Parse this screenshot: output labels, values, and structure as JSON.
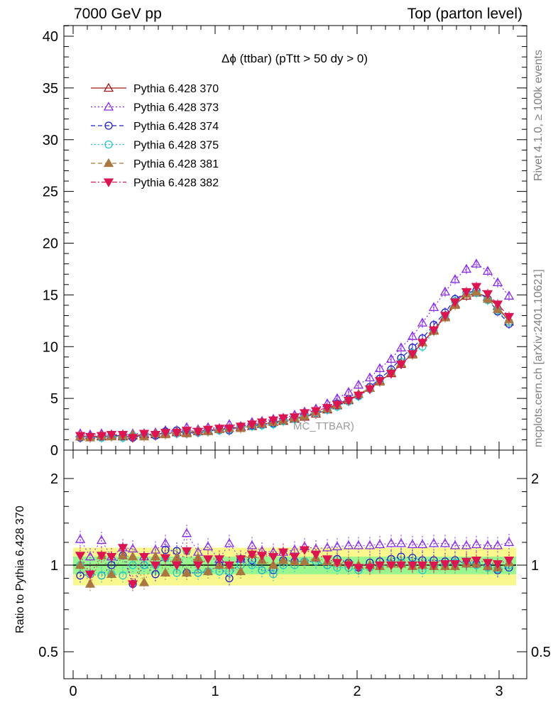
{
  "header": {
    "left": "7000 GeV pp",
    "right": "Top (parton level)"
  },
  "side_labels": {
    "rivet": "Rivet 4.1.0, ≥ 100k events",
    "mcplots": "mcplots.cern.ch [arXiv:2401.10621]"
  },
  "ratio_ylabel": "Ratio to Pythia 6.428 370",
  "watermark": "MC_TTBAR)",
  "chart_data": [
    {
      "type": "line",
      "title": "Δϕ (ttbar) (pTtt > 50 dy > 0)",
      "xlabel": "",
      "ylabel": "",
      "xlim": [
        -0.05,
        3.2
      ],
      "ylim": [
        0,
        41
      ],
      "xticks": [
        0,
        1,
        2,
        3
      ],
      "yticks": [
        0,
        5,
        10,
        15,
        20,
        25,
        30,
        35,
        40
      ],
      "legend_position": "top-left",
      "x": [
        0.05,
        0.12,
        0.2,
        0.27,
        0.35,
        0.42,
        0.5,
        0.58,
        0.65,
        0.73,
        0.8,
        0.88,
        0.95,
        1.03,
        1.1,
        1.18,
        1.26,
        1.33,
        1.41,
        1.48,
        1.56,
        1.63,
        1.71,
        1.79,
        1.86,
        1.94,
        2.01,
        2.09,
        2.16,
        2.24,
        2.31,
        2.39,
        2.46,
        2.54,
        2.62,
        2.69,
        2.77,
        2.84,
        2.92,
        2.99,
        3.07
      ],
      "series": [
        {
          "name": "Pythia 6.428 370",
          "color": "#a01818",
          "marker": "triangle-up-open",
          "line": "solid",
          "values": [
            1.3,
            1.4,
            1.3,
            1.4,
            1.3,
            1.4,
            1.5,
            1.5,
            1.6,
            1.7,
            1.7,
            1.8,
            1.9,
            2.0,
            2.1,
            2.2,
            2.3,
            2.5,
            2.7,
            2.8,
            3.0,
            3.2,
            3.5,
            3.9,
            4.3,
            4.8,
            5.4,
            6.0,
            6.7,
            7.4,
            8.3,
            9.3,
            10.4,
            11.6,
            12.9,
            14.1,
            14.9,
            15.2,
            14.8,
            13.9,
            12.4
          ]
        },
        {
          "name": "Pythia 6.428 373",
          "color": "#8a2be2",
          "marker": "triangle-up-open",
          "line": "dotted",
          "values": [
            1.6,
            1.5,
            1.6,
            1.5,
            1.5,
            1.6,
            1.6,
            1.7,
            1.9,
            1.8,
            2.2,
            2.0,
            2.2,
            2.1,
            2.5,
            2.3,
            2.7,
            2.8,
            3.0,
            3.1,
            3.4,
            3.7,
            4.0,
            4.5,
            5.0,
            5.6,
            6.3,
            7.0,
            7.9,
            8.8,
            9.9,
            11.0,
            12.3,
            13.8,
            15.3,
            16.5,
            17.5,
            18.0,
            17.3,
            16.2,
            14.9
          ]
        },
        {
          "name": "Pythia 6.428 374",
          "color": "#1e1ecd",
          "marker": "circle-open",
          "line": "dashed",
          "values": [
            1.2,
            1.3,
            1.2,
            1.4,
            1.4,
            1.2,
            1.5,
            1.4,
            1.8,
            1.9,
            1.6,
            1.7,
            1.8,
            2.0,
            1.9,
            2.3,
            2.4,
            2.4,
            2.6,
            2.9,
            3.1,
            3.3,
            3.6,
            3.9,
            4.5,
            4.9,
            5.3,
            6.1,
            6.9,
            7.8,
            8.9,
            9.9,
            10.8,
            12.1,
            13.3,
            14.6,
            15.2,
            15.4,
            14.6,
            13.4,
            12.2
          ]
        },
        {
          "name": "Pythia 6.428 375",
          "color": "#20c8c8",
          "marker": "circle-open",
          "line": "dotted",
          "values": [
            1.3,
            1.3,
            1.2,
            1.3,
            1.2,
            1.4,
            1.5,
            1.5,
            1.7,
            1.6,
            1.9,
            1.7,
            1.8,
            1.9,
            2.0,
            2.2,
            2.3,
            2.4,
            2.5,
            2.8,
            3.0,
            3.3,
            3.6,
            3.9,
            4.2,
            4.7,
            5.2,
            5.9,
            6.6,
            7.5,
            8.5,
            9.4,
            10.0,
            11.5,
            13.0,
            14.4,
            15.1,
            15.2,
            14.5,
            13.5,
            12.4
          ]
        },
        {
          "name": "Pythia 6.428 381",
          "color": "#a87840",
          "marker": "triangle-up-filled",
          "line": "dashed",
          "values": [
            1.3,
            1.2,
            1.4,
            1.3,
            1.4,
            1.5,
            1.3,
            1.6,
            1.5,
            1.8,
            1.6,
            1.9,
            1.8,
            2.0,
            2.1,
            2.1,
            2.5,
            2.6,
            2.7,
            2.9,
            3.1,
            3.3,
            3.7,
            4.0,
            4.4,
            4.9,
            5.4,
            6.0,
            6.6,
            7.5,
            8.4,
            9.2,
            10.4,
            11.5,
            12.8,
            14.0,
            15.1,
            15.3,
            14.6,
            13.6,
            12.6
          ]
        },
        {
          "name": "Pythia 6.428 382",
          "color": "#dc1450",
          "marker": "triangle-down-filled",
          "line": "dashdot",
          "values": [
            1.4,
            1.3,
            1.4,
            1.5,
            1.5,
            1.2,
            1.6,
            1.5,
            1.7,
            1.7,
            1.9,
            1.8,
            2.0,
            2.1,
            2.1,
            2.3,
            2.5,
            2.7,
            2.9,
            3.1,
            3.2,
            3.6,
            3.8,
            4.1,
            4.4,
            4.8,
            5.3,
            5.9,
            6.7,
            7.4,
            8.3,
            9.3,
            10.4,
            11.6,
            13.0,
            14.3,
            15.3,
            15.8,
            15.1,
            14.1,
            12.9
          ]
        }
      ]
    },
    {
      "type": "line",
      "title": "",
      "xlabel": "",
      "ylabel": "Ratio to Pythia 6.428 370",
      "xlim": [
        -0.05,
        3.2
      ],
      "ylim": [
        0.43,
        2.25
      ],
      "yscale": "log",
      "xticks": [
        0,
        1,
        2,
        3
      ],
      "yticks": [
        0.5,
        1,
        2
      ],
      "bands": {
        "inner": [
          0.93,
          1.07
        ],
        "outer": [
          0.85,
          1.15
        ]
      },
      "x": [
        0.05,
        0.12,
        0.2,
        0.27,
        0.35,
        0.42,
        0.5,
        0.58,
        0.65,
        0.73,
        0.8,
        0.88,
        0.95,
        1.03,
        1.1,
        1.18,
        1.26,
        1.33,
        1.41,
        1.48,
        1.56,
        1.63,
        1.71,
        1.79,
        1.86,
        1.94,
        2.01,
        2.09,
        2.16,
        2.24,
        2.31,
        2.39,
        2.46,
        2.54,
        2.62,
        2.69,
        2.77,
        2.84,
        2.92,
        2.99,
        3.07
      ],
      "series": [
        {
          "name": "Pythia 6.428 373",
          "color": "#8a2be2",
          "marker": "triangle-up-open",
          "values": [
            1.23,
            1.07,
            1.22,
            1.07,
            1.15,
            1.14,
            1.07,
            1.13,
            1.19,
            1.06,
            1.29,
            1.11,
            1.16,
            1.05,
            1.19,
            1.05,
            1.17,
            1.12,
            1.11,
            1.11,
            1.13,
            1.16,
            1.14,
            1.15,
            1.16,
            1.17,
            1.17,
            1.17,
            1.18,
            1.19,
            1.19,
            1.18,
            1.18,
            1.19,
            1.19,
            1.17,
            1.17,
            1.18,
            1.17,
            1.17,
            1.2
          ]
        },
        {
          "name": "Pythia 6.428 374",
          "color": "#1e1ecd",
          "marker": "circle-open",
          "values": [
            0.92,
            0.93,
            0.92,
            1.0,
            1.08,
            0.86,
            1.0,
            0.93,
            1.13,
            1.12,
            0.94,
            0.94,
            0.95,
            1.0,
            0.9,
            1.05,
            1.04,
            0.96,
            0.96,
            1.04,
            1.03,
            1.03,
            1.03,
            1.0,
            1.05,
            1.02,
            0.98,
            1.02,
            1.03,
            1.05,
            1.07,
            1.06,
            1.04,
            1.04,
            1.03,
            1.04,
            1.02,
            1.01,
            0.99,
            0.96,
            0.98
          ]
        },
        {
          "name": "Pythia 6.428 375",
          "color": "#20c8c8",
          "marker": "circle-open",
          "values": [
            1.0,
            0.93,
            0.92,
            0.93,
            0.92,
            1.0,
            1.0,
            1.0,
            1.06,
            0.94,
            1.12,
            0.94,
            0.95,
            0.95,
            0.95,
            1.0,
            1.0,
            0.96,
            0.93,
            1.0,
            1.0,
            1.03,
            1.03,
            1.0,
            0.98,
            0.98,
            0.96,
            0.98,
            0.99,
            1.01,
            1.02,
            1.01,
            0.96,
            0.99,
            1.01,
            1.02,
            1.01,
            1.0,
            0.98,
            0.97,
            1.0
          ]
        },
        {
          "name": "Pythia 6.428 381",
          "color": "#a87840",
          "marker": "triangle-up-filled",
          "values": [
            1.0,
            0.86,
            1.08,
            0.93,
            1.08,
            1.07,
            0.87,
            1.07,
            0.94,
            1.06,
            0.94,
            1.06,
            0.95,
            1.0,
            1.0,
            0.95,
            1.09,
            1.04,
            1.0,
            1.04,
            1.03,
            1.03,
            1.06,
            1.03,
            1.02,
            1.02,
            1.0,
            1.0,
            0.99,
            1.01,
            1.01,
            0.99,
            1.0,
            0.99,
            0.99,
            0.99,
            1.01,
            1.01,
            0.99,
            0.98,
            1.02
          ]
        },
        {
          "name": "Pythia 6.428 382",
          "color": "#dc1450",
          "marker": "triangle-down-filled",
          "values": [
            1.08,
            0.93,
            1.08,
            1.07,
            1.15,
            0.86,
            1.07,
            1.0,
            1.06,
            1.0,
            1.12,
            1.0,
            1.05,
            1.05,
            1.0,
            1.05,
            1.09,
            1.08,
            1.07,
            1.11,
            1.07,
            1.13,
            1.09,
            1.05,
            1.02,
            1.0,
            0.98,
            0.98,
            1.0,
            1.0,
            1.0,
            1.0,
            1.0,
            1.0,
            1.01,
            1.01,
            1.03,
            1.04,
            1.02,
            1.01,
            1.04
          ]
        }
      ]
    }
  ]
}
